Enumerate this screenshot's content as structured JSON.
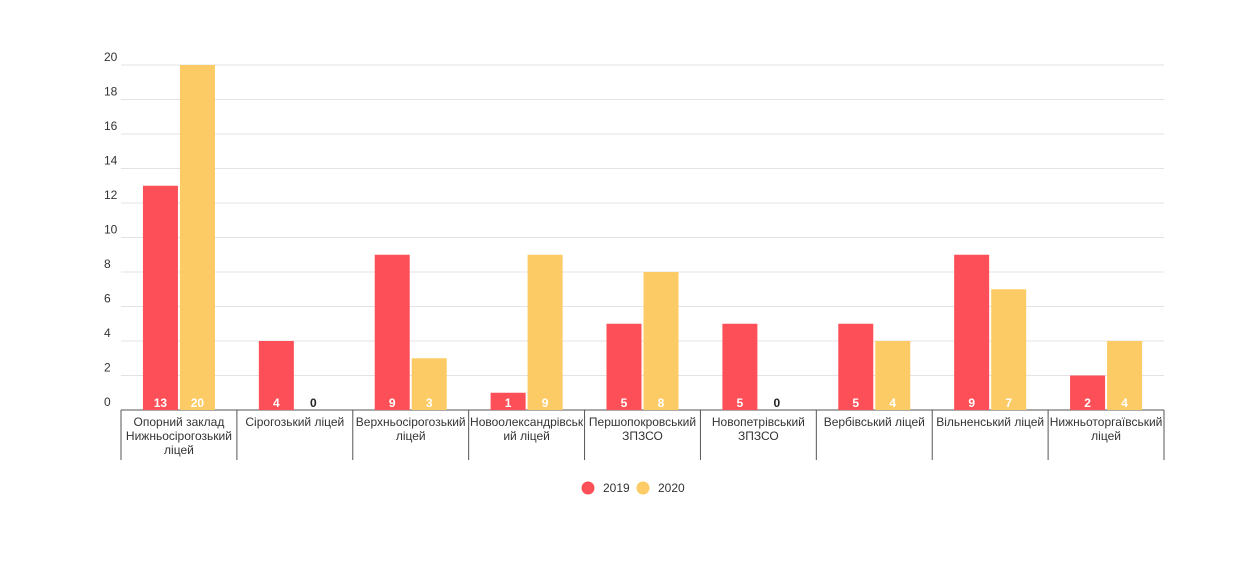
{
  "colors": {
    "series_2019": "#fd4f57",
    "series_2020": "#fdcb65",
    "grid": "#e3e3e3",
    "axis": "#555555",
    "label_on_bar": "#ffffff",
    "label_zero": "#222222"
  },
  "chart_data": {
    "type": "bar",
    "title": "",
    "xlabel": "",
    "ylabel": "",
    "ylim": [
      0,
      20
    ],
    "yticks": [
      "0",
      "2",
      "4",
      "6",
      "8",
      "10",
      "12",
      "14",
      "16",
      "18",
      "20"
    ],
    "grid": true,
    "legend": "bottom-center",
    "categories": [
      "Опорний заклад Нижньосірогозький ліцей",
      "Сірогозький ліцей",
      "Верхньосірогозький ліцей",
      "Новоолександрівський ліцей",
      "Першопокровський ЗПЗСО",
      "Новопетрівський ЗПЗСО",
      "Вербівський ліцей",
      "Вільненський ліцей",
      "Нижньоторгаївський ліцей"
    ],
    "category_lines": [
      [
        "Опорний заклад",
        "Нижньосірогозький",
        "ліцей"
      ],
      [
        "Сірогозький ліцей"
      ],
      [
        "Верхньосірогозький",
        "ліцей"
      ],
      [
        "Новоолександрівськ",
        "ий ліцей"
      ],
      [
        "Першопокровський",
        "ЗПЗСО"
      ],
      [
        "Новопетрівський",
        "ЗПЗСО"
      ],
      [
        "Вербівський ліцей"
      ],
      [
        "Вільненський ліцей"
      ],
      [
        "Нижньоторгаївський",
        "ліцей"
      ]
    ],
    "series": [
      {
        "name": "2019",
        "values": [
          13,
          4,
          9,
          1,
          5,
          5,
          5,
          9,
          2
        ]
      },
      {
        "name": "2020",
        "values": [
          20,
          0,
          3,
          9,
          8,
          0,
          4,
          7,
          4
        ]
      }
    ]
  }
}
